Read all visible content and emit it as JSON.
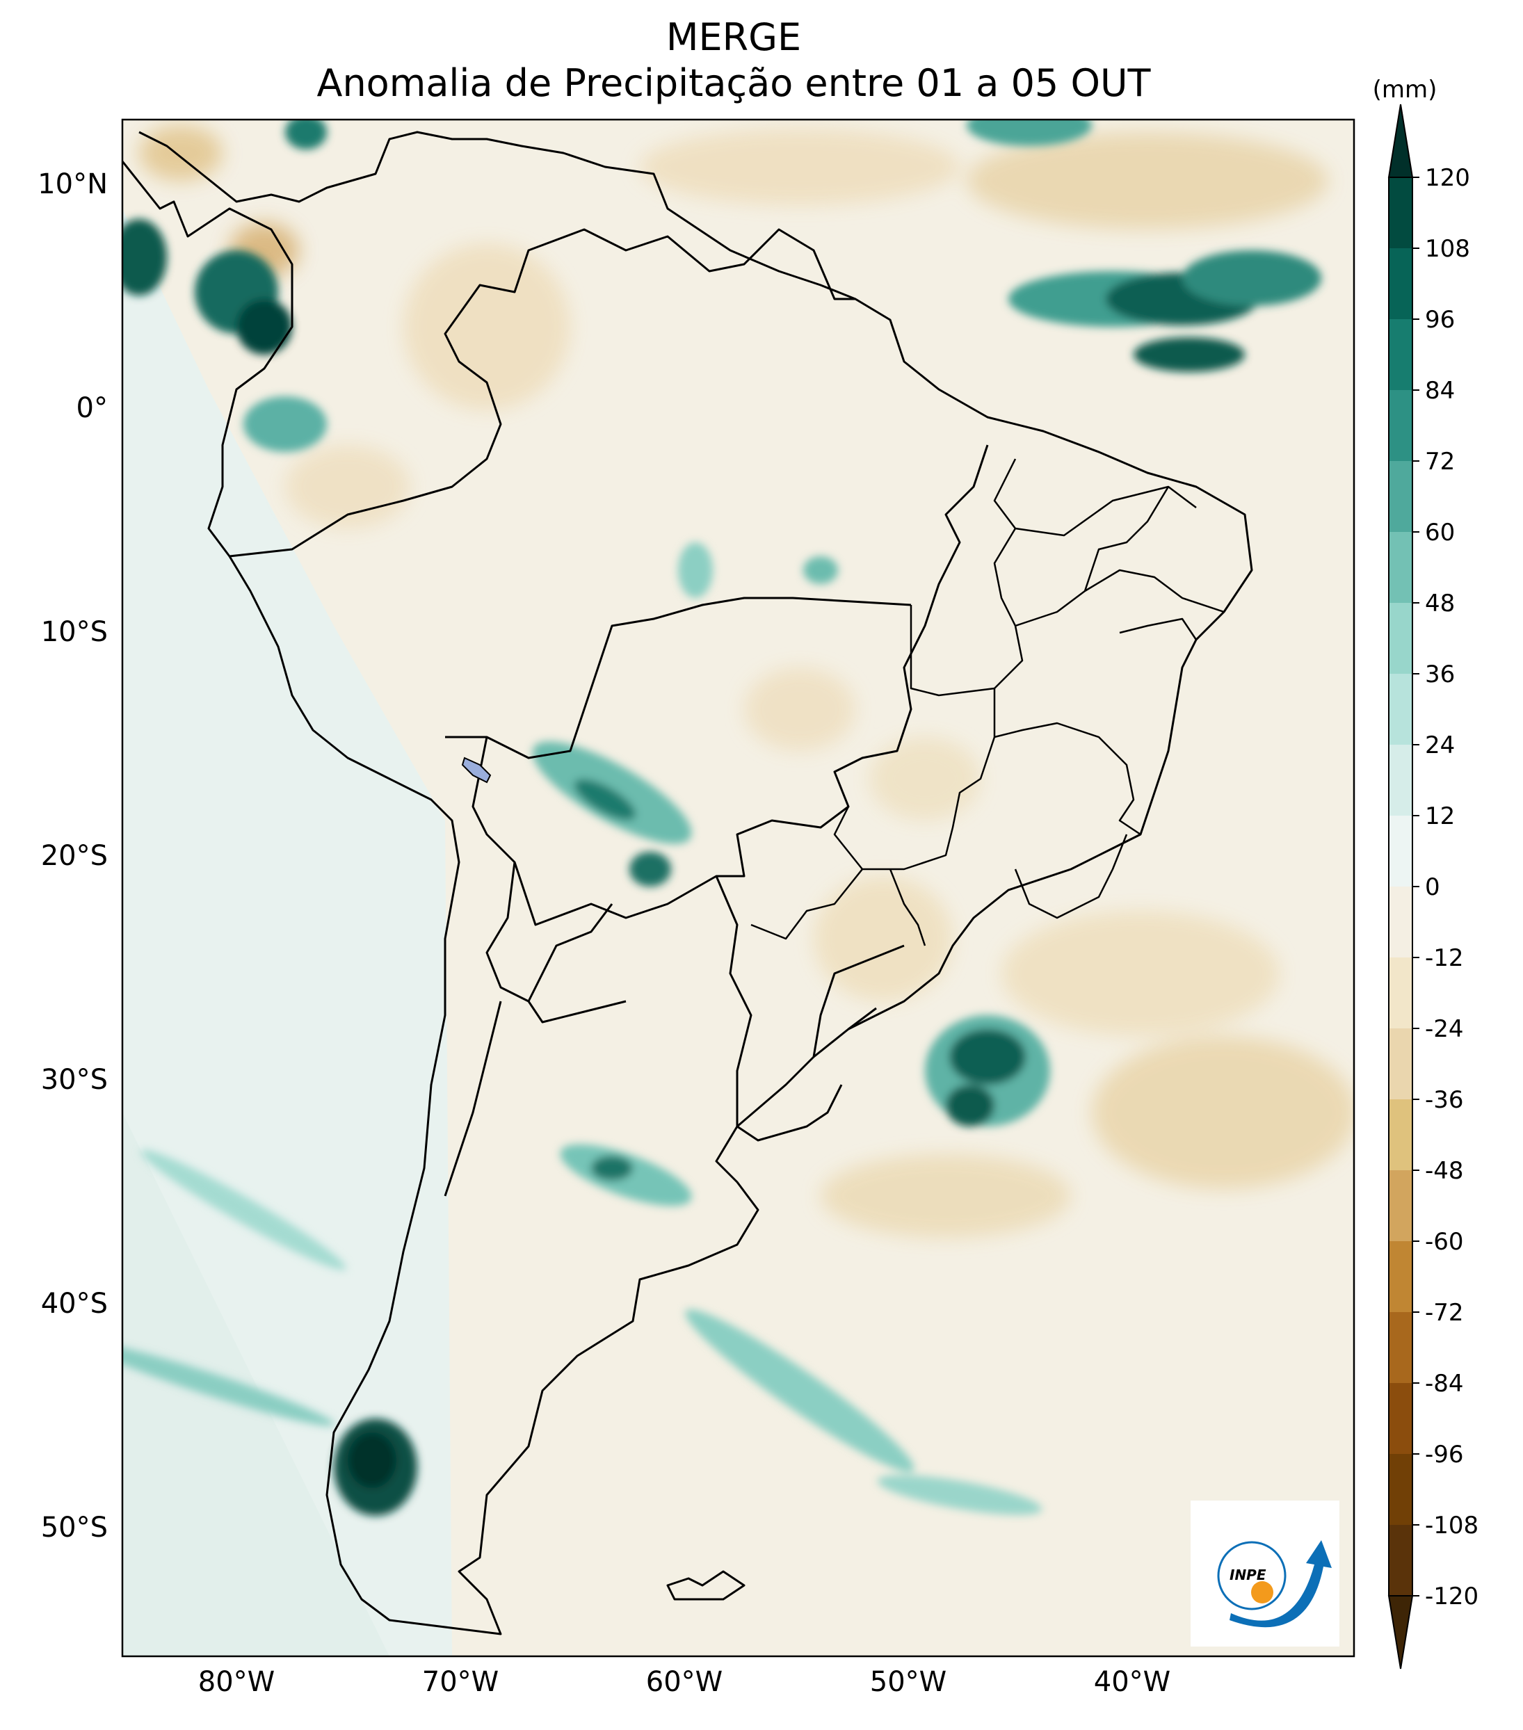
{
  "title": "MERGE",
  "subtitle": "Anomalia de Precipitação entre 01 a 05 OUT",
  "colorbar": {
    "unit": "(mm)",
    "ticks": [
      "120",
      "108",
      "96",
      "84",
      "72",
      "60",
      "48",
      "36",
      "24",
      "12",
      "0",
      "-12",
      "-24",
      "-36",
      "-48",
      "-60",
      "-72",
      "-84",
      "-96",
      "-108",
      "-120"
    ],
    "colors": [
      "#01302a",
      "#024b40",
      "#076457",
      "#177d6f",
      "#2d9184",
      "#4fa99c",
      "#73c1b4",
      "#98d6cb",
      "#b7e3dc",
      "#d6ede9",
      "#edf5f3",
      "#f4efe3",
      "#f2e6c9",
      "#ead6ae",
      "#dfc27d",
      "#d2a55e",
      "#c08633",
      "#a8681d",
      "#8b4d0d",
      "#714006",
      "#5a330a",
      "#3e2506"
    ]
  },
  "lat_labels": [
    "10°N",
    "0°",
    "10°S",
    "20°S",
    "30°S",
    "40°S",
    "50°S"
  ],
  "lon_labels": [
    "80°W",
    "70°W",
    "60°W",
    "50°W",
    "40°W"
  ],
  "logo_text": "INPE"
}
